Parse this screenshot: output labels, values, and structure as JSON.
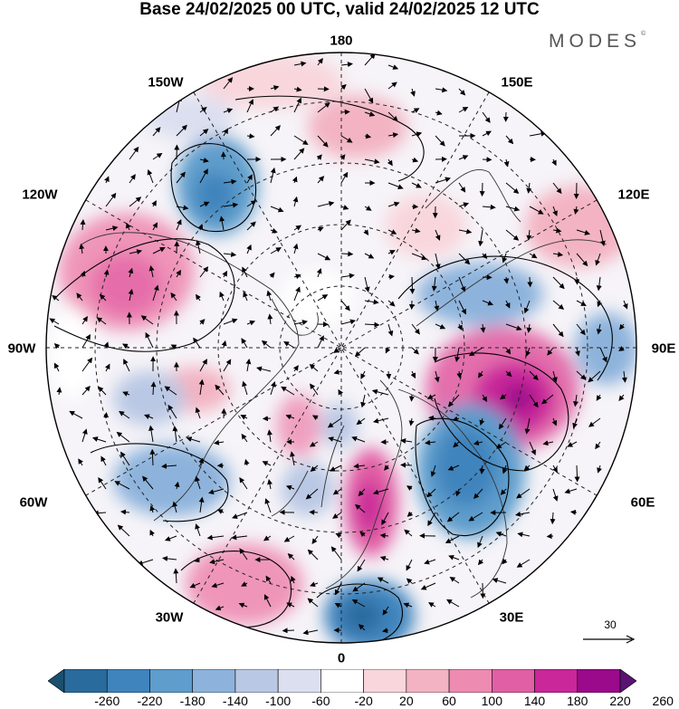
{
  "title": "Base 24/02/2025 00 UTC, valid 24/02/2025 12 UTC",
  "brand": "MODES",
  "brand_mark": "©",
  "longitude_labels": {
    "top": "180",
    "bottom": "0",
    "left": "90W",
    "right": "90E",
    "upper_left_1": "150W",
    "upper_left_2": "120W",
    "upper_right_1": "150E",
    "upper_right_2": "120E",
    "lower_left_1": "60W",
    "lower_left_2": "30W",
    "lower_right_1": "60E",
    "lower_right_2": "30E"
  },
  "reference_vector": {
    "label": "30"
  },
  "colorbar": {
    "ticks": [
      "-260",
      "-220",
      "-180",
      "-140",
      "-100",
      "-60",
      "-20",
      "20",
      "60",
      "100",
      "140",
      "180",
      "220",
      "260"
    ],
    "colors": [
      "#1b4f6e",
      "#2a6b9e",
      "#3f84bd",
      "#5e9dcc",
      "#8db3dc",
      "#b9c8e4",
      "#dcdff0",
      "#ffffff",
      "#f8d6dc",
      "#f3b3c2",
      "#ee8bb1",
      "#e15fa4",
      "#c9279a",
      "#9b0a8a",
      "#5a1370"
    ]
  }
}
